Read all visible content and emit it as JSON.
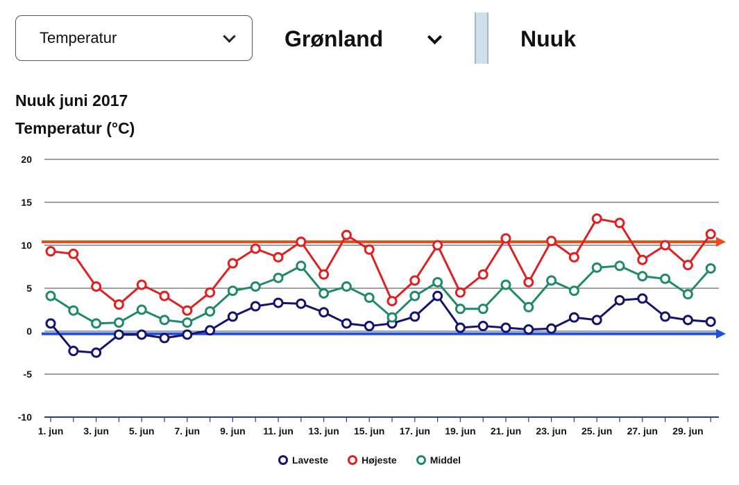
{
  "controls": {
    "variable_select": "Temperatur",
    "region_select": "Grønland",
    "city": "Nuuk"
  },
  "chart_header": {
    "title": "Nuuk juni 2017",
    "subtitle": "Temperatur (°C)"
  },
  "colors": {
    "laveste": "#14146e",
    "hojeste": "#e02020",
    "middel": "#1f8a6a",
    "ref_high": "#f04a18",
    "ref_low": "#2050e0",
    "grid": "#666666",
    "axis": "#283a8c"
  },
  "chart_data": {
    "type": "line",
    "title": "Nuuk juni 2017",
    "ylabel": "Temperatur (°C)",
    "ylim": [
      -10,
      20
    ],
    "yticks": [
      20,
      15,
      10,
      5,
      0,
      -5,
      -10
    ],
    "x": [
      1,
      2,
      3,
      4,
      5,
      6,
      7,
      8,
      9,
      10,
      11,
      12,
      13,
      14,
      15,
      16,
      17,
      18,
      19,
      20,
      21,
      22,
      23,
      24,
      25,
      26,
      27,
      28,
      29,
      30
    ],
    "x_tick_labels": [
      "1. jun",
      "3. jun",
      "5. jun",
      "7. jun",
      "9. jun",
      "11. jun",
      "13. jun",
      "15. jun",
      "17. jun",
      "19. jun",
      "21. jun",
      "23. jun",
      "25. jun",
      "27. jun",
      "29. jun"
    ],
    "x_tick_days": [
      1,
      3,
      5,
      7,
      9,
      11,
      13,
      15,
      17,
      19,
      21,
      23,
      25,
      27,
      29
    ],
    "grid": true,
    "legend": "bottom-center",
    "series": [
      {
        "name": "Laveste",
        "color": "#14146e",
        "values": [
          0.9,
          -2.3,
          -2.5,
          -0.4,
          -0.4,
          -0.8,
          -0.4,
          0.1,
          1.7,
          2.9,
          3.3,
          3.2,
          2.2,
          0.9,
          0.6,
          0.9,
          1.7,
          4.1,
          0.4,
          0.6,
          0.4,
          0.2,
          0.3,
          1.6,
          1.3,
          3.6,
          3.8,
          1.7,
          1.3,
          1.1
        ]
      },
      {
        "name": "Højeste",
        "color": "#e02020",
        "values": [
          9.3,
          9.0,
          5.2,
          3.1,
          5.4,
          4.1,
          2.4,
          4.5,
          7.9,
          9.6,
          8.6,
          10.4,
          6.6,
          11.2,
          9.5,
          3.5,
          5.9,
          10.0,
          4.5,
          6.6,
          10.8,
          5.7,
          10.5,
          8.6,
          13.1,
          12.6,
          8.3,
          10.0,
          7.7,
          11.3
        ]
      },
      {
        "name": "Middel",
        "color": "#1f8a6a",
        "values": [
          4.1,
          2.4,
          0.9,
          1.0,
          2.5,
          1.3,
          1.0,
          2.3,
          4.7,
          5.2,
          6.2,
          7.6,
          4.4,
          5.2,
          3.9,
          1.6,
          4.1,
          5.7,
          2.6,
          2.6,
          5.4,
          2.8,
          5.9,
          4.7,
          7.4,
          7.6,
          6.4,
          6.1,
          4.3,
          7.3
        ]
      }
    ],
    "reference_lines": [
      {
        "value": 10.4,
        "color": "#f04a18"
      },
      {
        "value": -0.3,
        "color": "#2050e0"
      }
    ]
  },
  "legend_items": [
    {
      "label": "Laveste"
    },
    {
      "label": "Højeste"
    },
    {
      "label": "Middel"
    }
  ]
}
